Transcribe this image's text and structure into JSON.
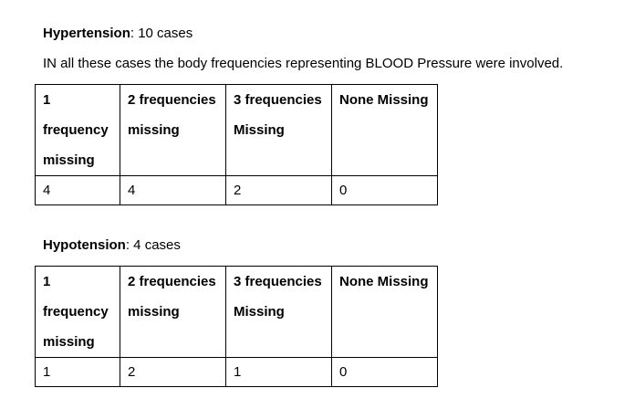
{
  "hypertension": {
    "label": "Hypertension",
    "count_text": ": 10 cases",
    "note": "IN all these cases the body frequencies representing  BLOOD Pressure were involved.",
    "headers": [
      "1 frequency missing",
      "2 frequencies missing",
      "3 frequencies Missing",
      "None Missing"
    ],
    "values": [
      "4",
      "4",
      "2",
      "0"
    ]
  },
  "hypotension": {
    "label": "Hypotension",
    "count_text": ": 4 cases",
    "headers": [
      "1 frequency missing",
      "2 frequencies missing",
      "3 frequencies Missing",
      "None Missing"
    ],
    "values": [
      "1",
      "2",
      "1",
      "0"
    ]
  }
}
